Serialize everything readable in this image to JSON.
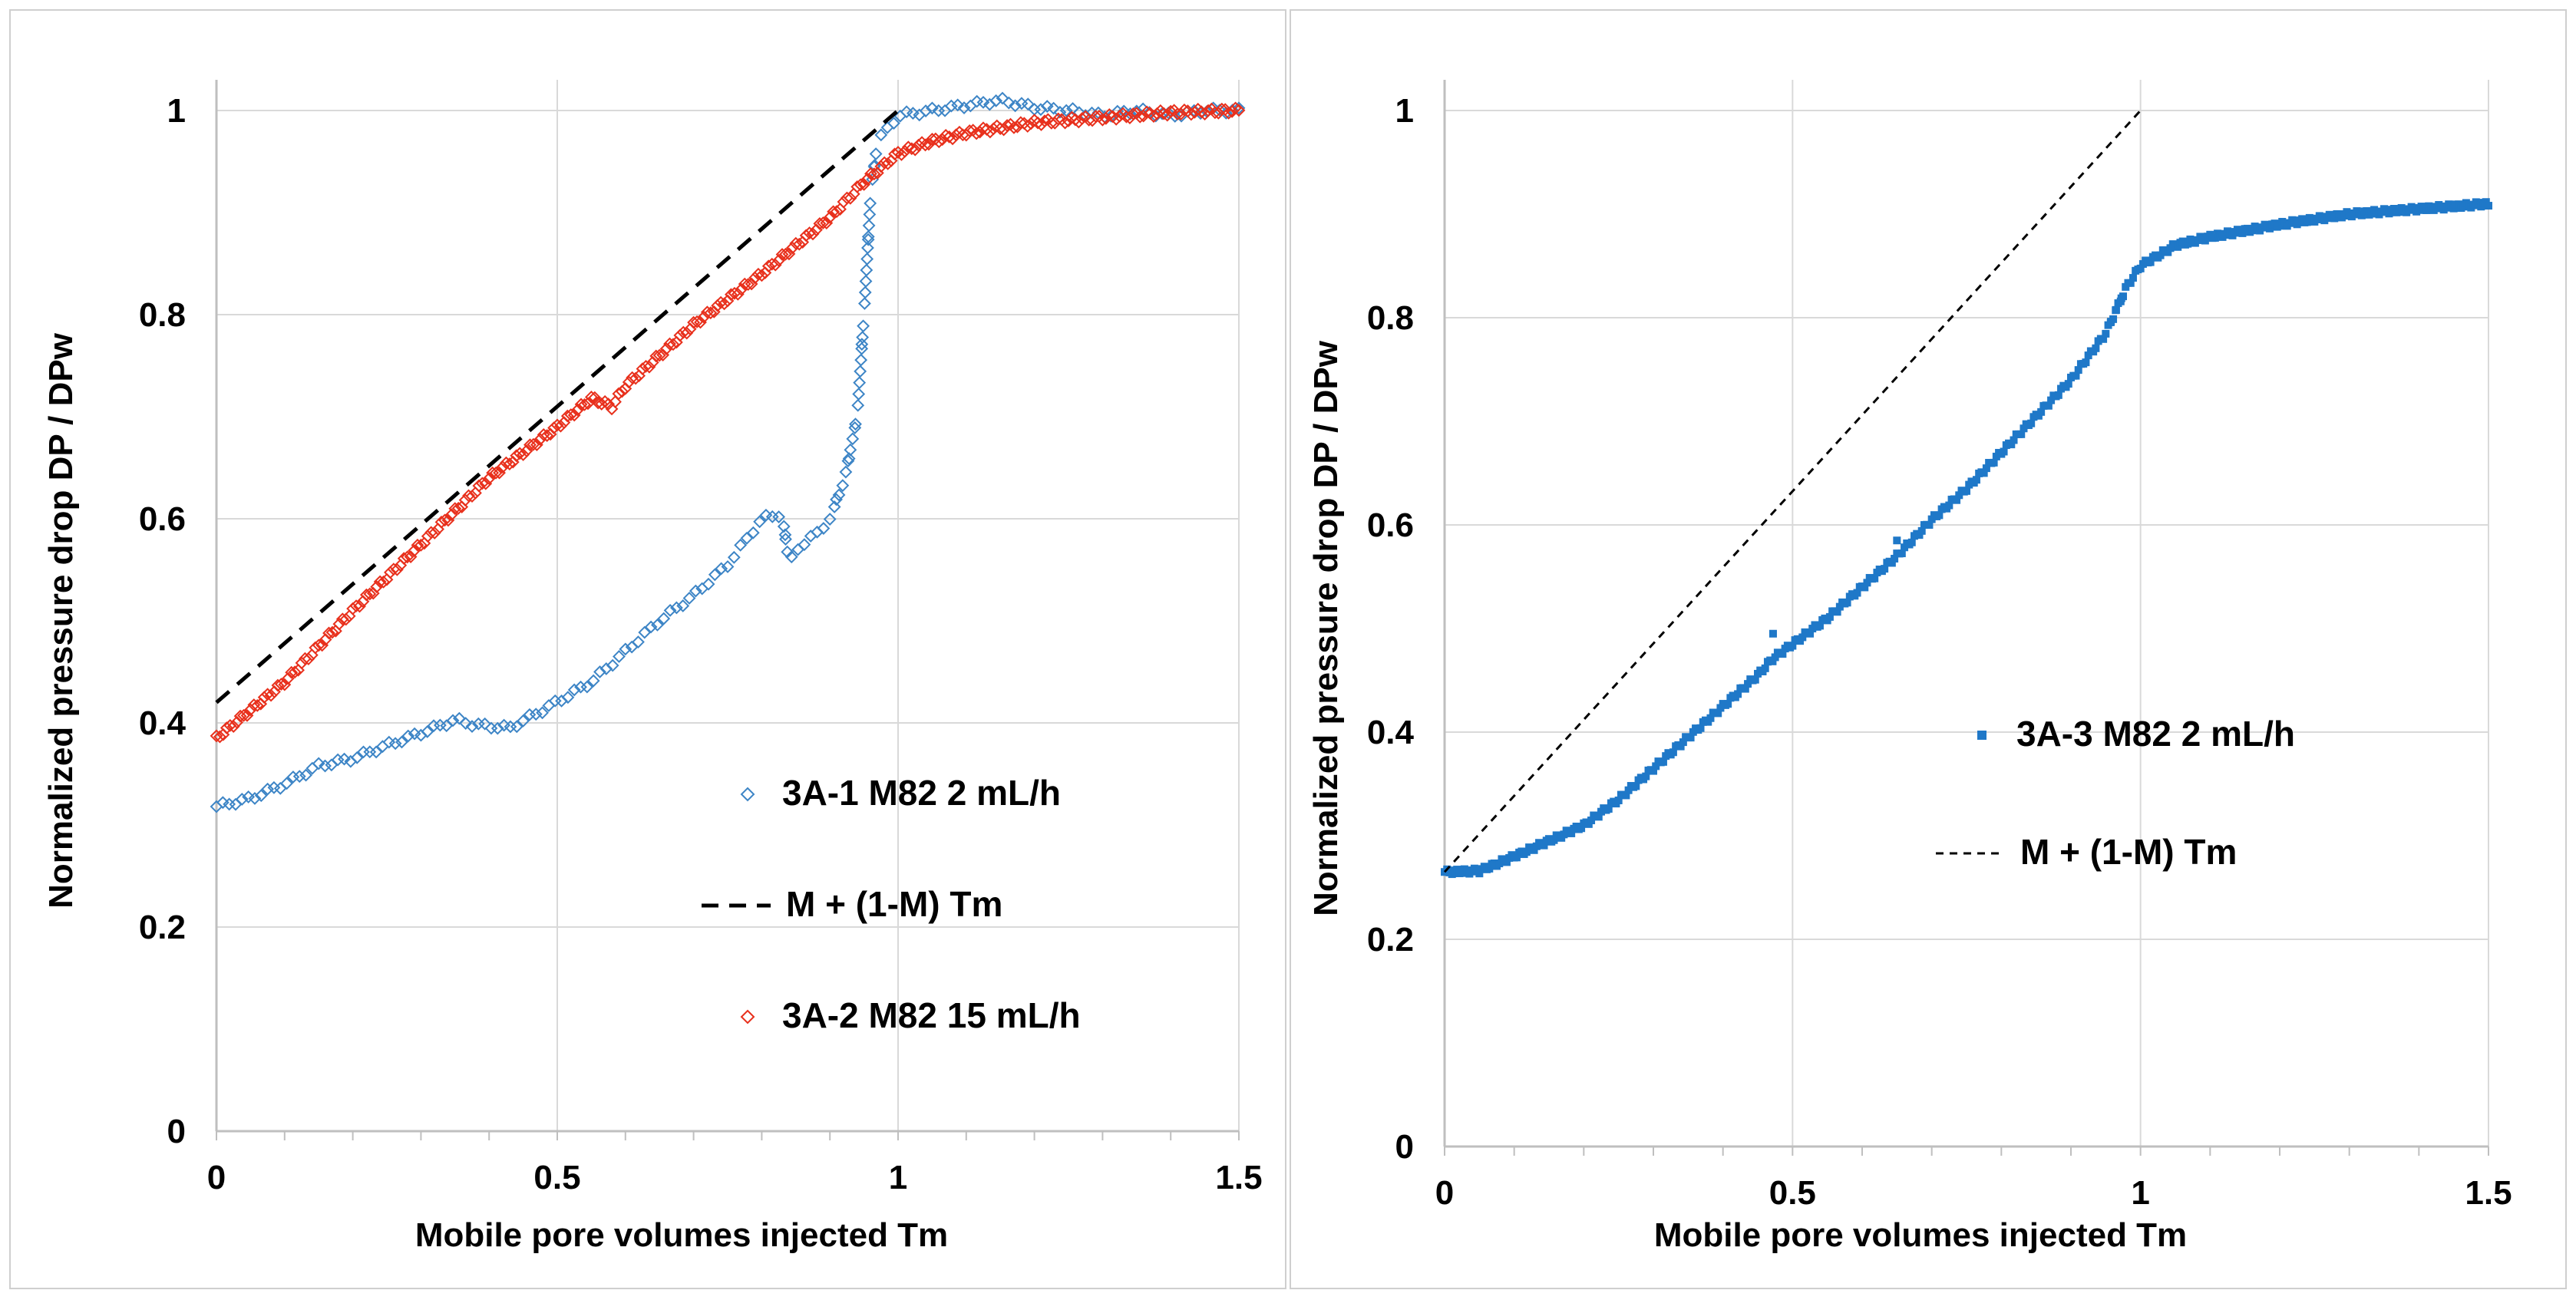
{
  "chart_data": [
    {
      "type": "scatter",
      "id": "left",
      "xlabel": "Mobile pore volumes injected Tm",
      "ylabel": "Normalized pressure drop DP / DPw",
      "xlim": [
        0,
        1.5
      ],
      "ylim": [
        0,
        1.0
      ],
      "xticks": [
        {
          "v": 0,
          "label": "0"
        },
        {
          "v": 0.5,
          "label": "0.5"
        },
        {
          "v": 1.0,
          "label": "1"
        },
        {
          "v": 1.5,
          "label": "1.5"
        }
      ],
      "yticks": [
        {
          "v": 0,
          "label": "0"
        },
        {
          "v": 0.2,
          "label": "0.2"
        },
        {
          "v": 0.4,
          "label": "0.4"
        },
        {
          "v": 0.6,
          "label": "0.6"
        },
        {
          "v": 0.8,
          "label": "0.8"
        },
        {
          "v": 1.0,
          "label": "1"
        }
      ],
      "grid": true,
      "legend_position": "right-middle",
      "series": [
        {
          "name": "3A-1 M82 2 mL/h",
          "style": "open-diamond",
          "color": "#3d85c6",
          "density": 160,
          "points": [
            [
              0,
              0.318
            ],
            [
              0.05,
              0.326
            ],
            [
              0.1,
              0.34
            ],
            [
              0.15,
              0.358
            ],
            [
              0.2,
              0.365
            ],
            [
              0.25,
              0.378
            ],
            [
              0.3,
              0.39
            ],
            [
              0.35,
              0.403
            ],
            [
              0.38,
              0.398
            ],
            [
              0.43,
              0.395
            ],
            [
              0.48,
              0.413
            ],
            [
              0.55,
              0.44
            ],
            [
              0.6,
              0.47
            ],
            [
              0.65,
              0.5
            ],
            [
              0.7,
              0.525
            ],
            [
              0.75,
              0.555
            ],
            [
              0.8,
              0.6
            ],
            [
              0.83,
              0.605
            ],
            [
              0.84,
              0.555
            ],
            [
              0.85,
              0.57
            ],
            [
              0.88,
              0.585
            ],
            [
              0.9,
              0.6
            ],
            [
              0.92,
              0.635
            ],
            [
              0.94,
              0.7
            ],
            [
              0.95,
              0.8
            ],
            [
              0.96,
              0.92
            ],
            [
              0.97,
              0.97
            ],
            [
              1.0,
              0.995
            ],
            [
              1.05,
              1.0
            ],
            [
              1.1,
              1.005
            ],
            [
              1.15,
              1.01
            ],
            [
              1.2,
              1.003
            ],
            [
              1.25,
              1.0
            ],
            [
              1.3,
              0.995
            ],
            [
              1.35,
              1.0
            ],
            [
              1.4,
              0.995
            ],
            [
              1.45,
              1.0
            ],
            [
              1.5,
              1.0
            ]
          ]
        },
        {
          "name": "M + (1-M) Tm",
          "style": "dashed-line",
          "color": "#000000",
          "points": [
            [
              0,
              0.42
            ],
            [
              1.0,
              1.0
            ]
          ]
        },
        {
          "name": "3A-2 M82 15 mL/h",
          "style": "open-diamond",
          "color": "#e8301c",
          "density": 300,
          "points": [
            [
              0,
              0.385
            ],
            [
              0.1,
              0.44
            ],
            [
              0.2,
              0.51
            ],
            [
              0.3,
              0.575
            ],
            [
              0.4,
              0.64
            ],
            [
              0.5,
              0.69
            ],
            [
              0.55,
              0.718
            ],
            [
              0.58,
              0.71
            ],
            [
              0.6,
              0.73
            ],
            [
              0.7,
              0.79
            ],
            [
              0.8,
              0.84
            ],
            [
              0.9,
              0.895
            ],
            [
              0.95,
              0.93
            ],
            [
              1.0,
              0.958
            ],
            [
              1.05,
              0.97
            ],
            [
              1.1,
              0.978
            ],
            [
              1.2,
              0.988
            ],
            [
              1.3,
              0.993
            ],
            [
              1.4,
              0.998
            ],
            [
              1.5,
              1.0
            ]
          ]
        }
      ]
    },
    {
      "type": "scatter",
      "id": "right",
      "xlabel": "Mobile pore volumes injected Tm",
      "ylabel": "Normalized pressure drop DP / DPw",
      "xlim": [
        0,
        1.5
      ],
      "ylim": [
        0,
        1.0
      ],
      "xticks": [
        {
          "v": 0,
          "label": "0"
        },
        {
          "v": 0.5,
          "label": "0.5"
        },
        {
          "v": 1.0,
          "label": "1"
        },
        {
          "v": 1.5,
          "label": "1.5"
        }
      ],
      "yticks": [
        {
          "v": 0,
          "label": "0"
        },
        {
          "v": 0.2,
          "label": "0.2"
        },
        {
          "v": 0.4,
          "label": "0.4"
        },
        {
          "v": 0.6,
          "label": "0.6"
        },
        {
          "v": 0.8,
          "label": "0.8"
        },
        {
          "v": 1.0,
          "label": "1"
        }
      ],
      "grid": true,
      "legend_position": "right-middle",
      "series": [
        {
          "name": "3A-3 M82 2 mL/h",
          "style": "filled-square",
          "color": "#1f78c8",
          "density": 420,
          "points": [
            [
              0,
              0.265
            ],
            [
              0.05,
              0.266
            ],
            [
              0.1,
              0.28
            ],
            [
              0.15,
              0.295
            ],
            [
              0.2,
              0.31
            ],
            [
              0.25,
              0.335
            ],
            [
              0.3,
              0.365
            ],
            [
              0.35,
              0.395
            ],
            [
              0.4,
              0.425
            ],
            [
              0.45,
              0.455
            ],
            [
              0.47,
              0.47
            ],
            [
              0.5,
              0.485
            ],
            [
              0.55,
              0.51
            ],
            [
              0.6,
              0.54
            ],
            [
              0.65,
              0.57
            ],
            [
              0.7,
              0.605
            ],
            [
              0.75,
              0.635
            ],
            [
              0.8,
              0.67
            ],
            [
              0.85,
              0.705
            ],
            [
              0.9,
              0.74
            ],
            [
              0.95,
              0.785
            ],
            [
              0.98,
              0.83
            ],
            [
              1.0,
              0.85
            ],
            [
              1.05,
              0.87
            ],
            [
              1.1,
              0.878
            ],
            [
              1.2,
              0.89
            ],
            [
              1.3,
              0.9
            ],
            [
              1.4,
              0.905
            ],
            [
              1.5,
              0.91
            ]
          ],
          "outliers": [
            [
              0.472,
              0.495
            ],
            [
              0.65,
              0.585
            ]
          ]
        },
        {
          "name": "M + (1-M) Tm",
          "style": "dashed-line-thin",
          "color": "#000000",
          "points": [
            [
              0,
              0.265
            ],
            [
              1.0,
              1.0
            ]
          ]
        }
      ]
    }
  ]
}
